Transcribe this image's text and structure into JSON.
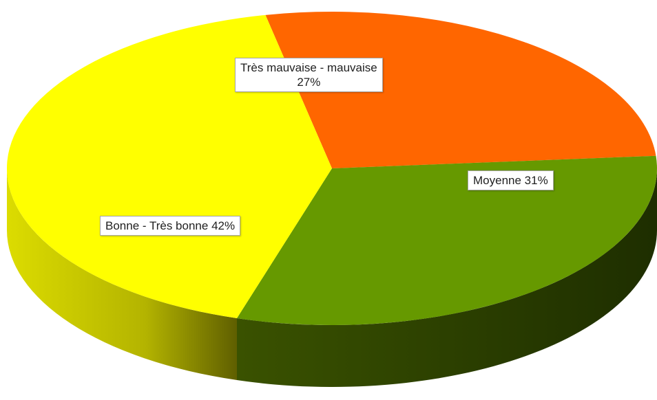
{
  "chart_data": {
    "type": "pie",
    "style": "3d",
    "slices": [
      {
        "label": "Très mauvaise - mauvaise",
        "value": 27,
        "value_label": "27%",
        "color": "#ff6600"
      },
      {
        "label": "Moyenne",
        "value": 31,
        "value_label": "31%",
        "color": "#669900"
      },
      {
        "label": "Bonne - Très bonne",
        "value": 42,
        "value_label": "42%",
        "color": "#ffff00"
      }
    ],
    "legend": "none"
  }
}
